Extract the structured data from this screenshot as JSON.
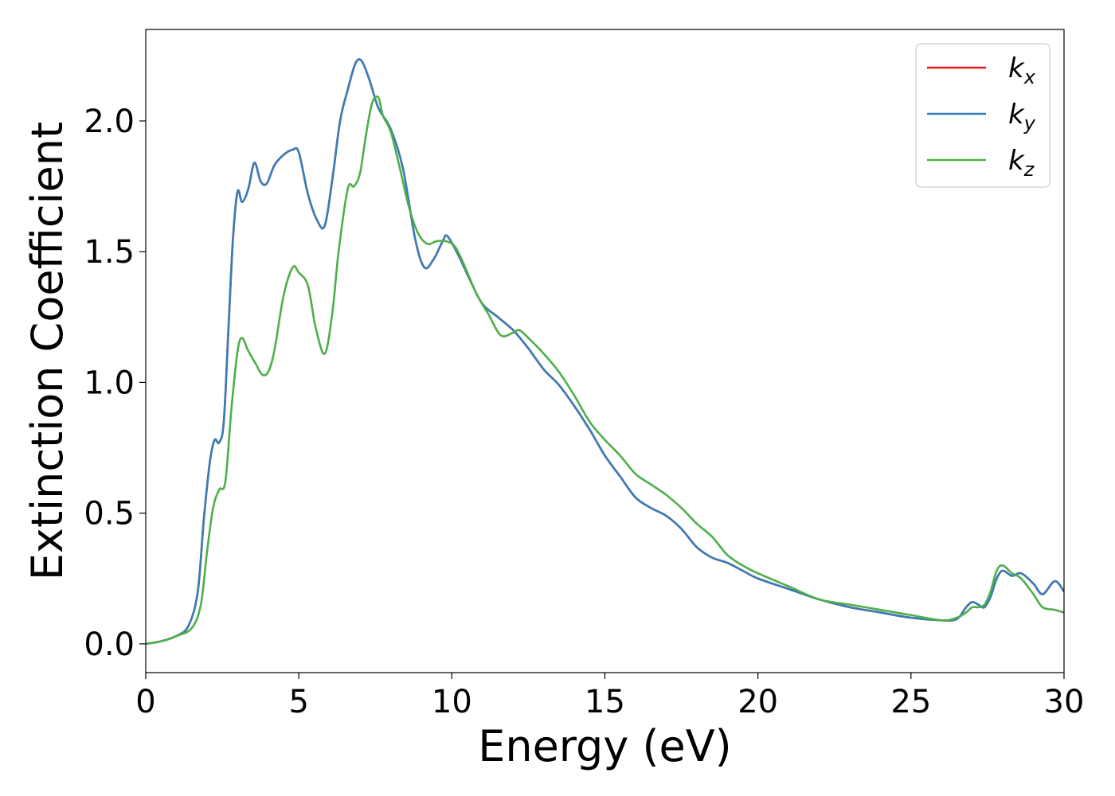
{
  "chart_data": {
    "type": "line",
    "title": "",
    "xlabel": "Energy (eV)",
    "ylabel": "Extinction Coefficient",
    "xlim": [
      0,
      30
    ],
    "ylim": [
      -0.11,
      2.35
    ],
    "xticks": [
      0,
      5,
      10,
      15,
      20,
      25,
      30
    ],
    "xtick_labels": [
      "0",
      "5",
      "10",
      "15",
      "20",
      "25",
      "30"
    ],
    "yticks": [
      0.0,
      0.5,
      1.0,
      1.5,
      2.0
    ],
    "ytick_labels": [
      "0.0",
      "0.5",
      "1.0",
      "1.5",
      "2.0"
    ],
    "grid": false,
    "legend_position": "top-right",
    "legend": [
      {
        "base": "k",
        "sub": "x",
        "color": "#e41a1c"
      },
      {
        "base": "k",
        "sub": "y",
        "color": "#377eb8"
      },
      {
        "base": "k",
        "sub": "z",
        "color": "#4daf4a"
      }
    ],
    "series": [
      {
        "name": "kx",
        "color": "#e41a1c",
        "x": [
          0,
          0.5,
          1.0,
          1.4,
          1.7,
          1.9,
          2.1,
          2.25,
          2.4,
          2.55,
          2.7,
          2.85,
          3.0,
          3.15,
          3.35,
          3.55,
          3.75,
          3.95,
          4.2,
          4.5,
          4.8,
          5.0,
          5.3,
          5.6,
          5.85,
          6.1,
          6.35,
          6.6,
          6.85,
          7.05,
          7.3,
          7.6,
          8.0,
          8.4,
          8.8,
          9.1,
          9.4,
          9.7,
          9.85,
          10.2,
          10.6,
          11.0,
          11.5,
          12.0,
          12.5,
          13.0,
          13.5,
          14.0,
          14.5,
          15.0,
          15.5,
          16.0,
          16.5,
          17.0,
          17.5,
          18.0,
          18.5,
          19.0,
          19.5,
          20.0,
          21.0,
          22.0,
          23.0,
          24.0,
          25.0,
          26.0,
          26.5,
          26.8,
          27.0,
          27.2,
          27.4,
          27.6,
          27.8,
          28.0,
          28.3,
          28.6,
          29.0,
          29.3,
          29.7,
          30.0
        ],
        "values": [
          0.0,
          0.01,
          0.03,
          0.07,
          0.2,
          0.48,
          0.7,
          0.78,
          0.77,
          0.85,
          1.2,
          1.55,
          1.73,
          1.69,
          1.74,
          1.84,
          1.77,
          1.76,
          1.83,
          1.87,
          1.89,
          1.88,
          1.72,
          1.62,
          1.6,
          1.78,
          2.0,
          2.12,
          2.22,
          2.23,
          2.16,
          2.05,
          1.97,
          1.82,
          1.55,
          1.44,
          1.47,
          1.54,
          1.56,
          1.49,
          1.39,
          1.3,
          1.25,
          1.2,
          1.13,
          1.05,
          0.99,
          0.91,
          0.82,
          0.72,
          0.64,
          0.56,
          0.52,
          0.49,
          0.44,
          0.37,
          0.33,
          0.31,
          0.28,
          0.25,
          0.21,
          0.17,
          0.14,
          0.12,
          0.1,
          0.09,
          0.095,
          0.14,
          0.16,
          0.15,
          0.14,
          0.18,
          0.25,
          0.28,
          0.26,
          0.27,
          0.23,
          0.19,
          0.24,
          0.2
        ]
      },
      {
        "name": "ky",
        "color": "#377eb8",
        "x": [
          0,
          0.5,
          1.0,
          1.4,
          1.7,
          1.9,
          2.1,
          2.25,
          2.4,
          2.55,
          2.7,
          2.85,
          3.0,
          3.15,
          3.35,
          3.55,
          3.75,
          3.95,
          4.2,
          4.5,
          4.8,
          5.0,
          5.3,
          5.6,
          5.85,
          6.1,
          6.35,
          6.6,
          6.85,
          7.05,
          7.3,
          7.6,
          8.0,
          8.4,
          8.8,
          9.1,
          9.4,
          9.7,
          9.85,
          10.2,
          10.6,
          11.0,
          11.5,
          12.0,
          12.5,
          13.0,
          13.5,
          14.0,
          14.5,
          15.0,
          15.5,
          16.0,
          16.5,
          17.0,
          17.5,
          18.0,
          18.5,
          19.0,
          19.5,
          20.0,
          21.0,
          22.0,
          23.0,
          24.0,
          25.0,
          26.0,
          26.5,
          26.8,
          27.0,
          27.2,
          27.4,
          27.6,
          27.8,
          28.0,
          28.3,
          28.6,
          29.0,
          29.3,
          29.7,
          30.0
        ],
        "values": [
          0.0,
          0.01,
          0.03,
          0.07,
          0.2,
          0.48,
          0.7,
          0.78,
          0.77,
          0.85,
          1.2,
          1.55,
          1.73,
          1.69,
          1.74,
          1.84,
          1.77,
          1.76,
          1.83,
          1.87,
          1.89,
          1.88,
          1.72,
          1.62,
          1.6,
          1.78,
          2.0,
          2.12,
          2.22,
          2.23,
          2.16,
          2.05,
          1.97,
          1.82,
          1.55,
          1.44,
          1.47,
          1.54,
          1.56,
          1.49,
          1.39,
          1.3,
          1.25,
          1.2,
          1.13,
          1.05,
          0.99,
          0.91,
          0.82,
          0.72,
          0.64,
          0.56,
          0.52,
          0.49,
          0.44,
          0.37,
          0.33,
          0.31,
          0.28,
          0.25,
          0.21,
          0.17,
          0.14,
          0.12,
          0.1,
          0.09,
          0.095,
          0.14,
          0.16,
          0.15,
          0.14,
          0.18,
          0.25,
          0.28,
          0.26,
          0.27,
          0.23,
          0.19,
          0.24,
          0.2
        ]
      },
      {
        "name": "kz",
        "color": "#4daf4a",
        "x": [
          0,
          0.5,
          1.0,
          1.5,
          1.8,
          2.0,
          2.2,
          2.4,
          2.6,
          2.8,
          3.0,
          3.15,
          3.35,
          3.6,
          3.8,
          4.0,
          4.2,
          4.5,
          4.8,
          5.0,
          5.3,
          5.55,
          5.85,
          6.1,
          6.3,
          6.6,
          6.8,
          7.0,
          7.2,
          7.4,
          7.6,
          7.75,
          8.0,
          8.3,
          8.6,
          8.9,
          9.2,
          9.5,
          9.8,
          10.1,
          10.4,
          10.8,
          11.2,
          11.6,
          12.0,
          12.2,
          12.5,
          13.0,
          13.5,
          14.0,
          14.5,
          15.0,
          15.5,
          16.0,
          16.5,
          17.0,
          17.5,
          18.0,
          18.5,
          19.0,
          19.5,
          20.0,
          21.0,
          22.0,
          23.0,
          24.0,
          25.0,
          26.0,
          26.5,
          26.8,
          27.0,
          27.2,
          27.4,
          27.6,
          27.8,
          28.0,
          28.3,
          28.6,
          29.0,
          29.3,
          29.7,
          30.0
        ],
        "values": [
          0.0,
          0.01,
          0.03,
          0.06,
          0.15,
          0.35,
          0.52,
          0.59,
          0.62,
          0.9,
          1.12,
          1.17,
          1.12,
          1.07,
          1.03,
          1.04,
          1.12,
          1.33,
          1.44,
          1.42,
          1.37,
          1.21,
          1.11,
          1.27,
          1.5,
          1.74,
          1.75,
          1.8,
          1.95,
          2.07,
          2.09,
          2.02,
          1.96,
          1.82,
          1.67,
          1.57,
          1.53,
          1.54,
          1.54,
          1.52,
          1.45,
          1.34,
          1.26,
          1.18,
          1.19,
          1.2,
          1.17,
          1.11,
          1.04,
          0.95,
          0.85,
          0.78,
          0.72,
          0.65,
          0.61,
          0.57,
          0.52,
          0.46,
          0.41,
          0.34,
          0.3,
          0.27,
          0.22,
          0.17,
          0.15,
          0.13,
          0.11,
          0.09,
          0.1,
          0.12,
          0.14,
          0.14,
          0.15,
          0.2,
          0.28,
          0.3,
          0.27,
          0.25,
          0.19,
          0.14,
          0.13,
          0.12
        ]
      }
    ]
  }
}
